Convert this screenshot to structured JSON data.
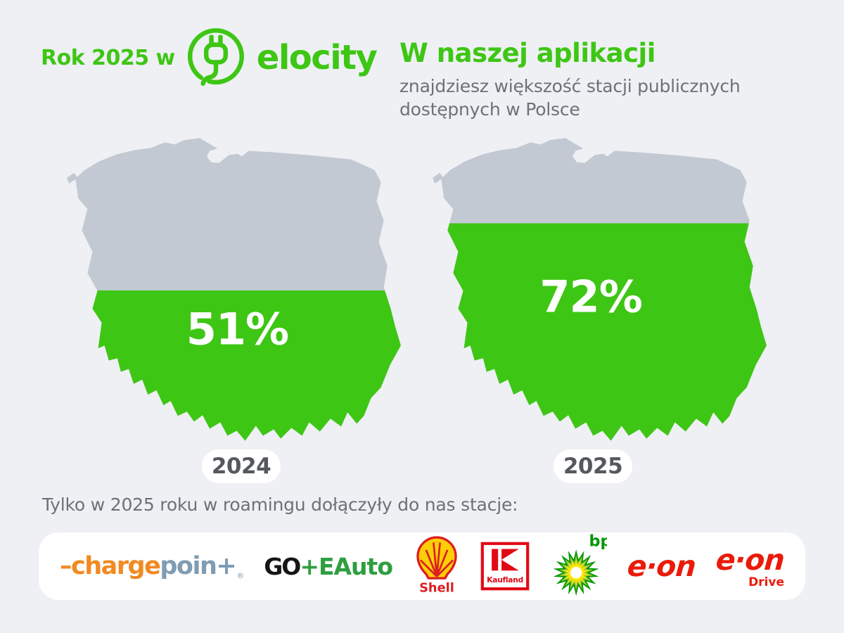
{
  "header": {
    "prefix": "Rok 2025 w",
    "brand": "elocity",
    "title": "W naszej aplikacji",
    "subtitle": "znajdziesz większość stacji publicznych dostępnych w Polsce"
  },
  "maps": [
    {
      "year": "2024",
      "percent": 51,
      "percent_label": "51%"
    },
    {
      "year": "2025",
      "percent": 72,
      "percent_label": "72%"
    }
  ],
  "footer": {
    "text": "Tylko w 2025 roku w roamingu dołączyły do nas stacje:"
  },
  "partners": {
    "chargepoint": {
      "name": "ChargePoint",
      "orange": "–charge",
      "slate": "poin+",
      "reg": "®"
    },
    "goeauto": {
      "name": "GO+EAuto",
      "black": "GO",
      "green": "+EAuto"
    },
    "shell": {
      "name": "Shell",
      "label": "Shell"
    },
    "kaufland": {
      "name": "Kaufland",
      "label": "Kaufland"
    },
    "bp": {
      "name": "bp",
      "label": "bp"
    },
    "eon": {
      "name": "E.ON",
      "label": "e·on"
    },
    "eon_drive": {
      "name": "E.ON Drive",
      "label": "e·on",
      "sub": "Drive"
    }
  },
  "colors": {
    "background": "#eef0f4",
    "green": "#3ec614",
    "map_gray": "#c3c9d2",
    "text_gray": "#6d7177",
    "pill_text": "#55585c",
    "white": "#ffffff",
    "chargepoint_orange": "#f18a21",
    "chargepoint_slate": "#7f9cb2",
    "goeauto_black": "#161616",
    "goeauto_green": "#2f9e41",
    "shell_red": "#dd1d21",
    "shell_yellow": "#fbce07",
    "kaufland_red": "#e10915",
    "bp_dark_green": "#029700",
    "bp_light_green": "#9ec93c",
    "bp_yellow": "#ffe600",
    "eon_red": "#ea1b0a"
  },
  "chart_data": {
    "type": "bar",
    "categories": [
      "2024",
      "2025"
    ],
    "values": [
      51,
      72
    ],
    "unit": "%",
    "ylim": [
      0,
      100
    ],
    "title": "W naszej aplikacji znajdziesz większość stacji publicznych dostępnych w Polsce",
    "representation": "Poland map silhouettes filled green from the bottom to the given percentage, remainder gray"
  }
}
